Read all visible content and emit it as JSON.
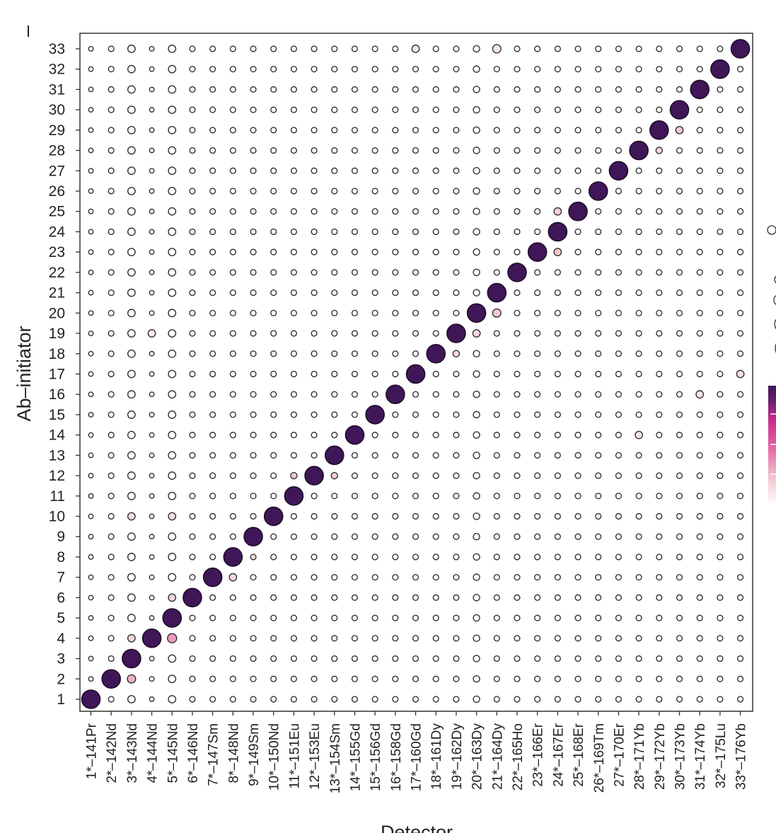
{
  "chart_data": {
    "type": "scatter",
    "chart_kind": "dot-matrix",
    "xlabel": "Detector",
    "ylabel": "Ab–initiator",
    "detectors": [
      "1*–141Pr",
      "2*–142Nd",
      "3*–143Nd",
      "4*–144Nd",
      "5*–145Nd",
      "6*–146Nd",
      "7*–147Sm",
      "8*–148Nd",
      "9*–149Sm",
      "10*–150Nd",
      "11*–151Eu",
      "12*–153Eu",
      "13*–154Sm",
      "14*–155Gd",
      "15*–156Gd",
      "16*–158Gd",
      "17*–160Gd",
      "18*–161Dy",
      "19*–162Dy",
      "20*–163Dy",
      "21*–164Dy",
      "22*–165Ho",
      "23*–166Er",
      "24*–167Er",
      "25*–168Er",
      "26*–169Tm",
      "27*–170Er",
      "28*–171Yb",
      "29*–172Yb",
      "30*–173Yb",
      "31*–174Yb",
      "32*–175Lu",
      "33*–176Yb"
    ],
    "initiators": [
      "1",
      "2",
      "3",
      "4",
      "5",
      "6",
      "7",
      "8",
      "9",
      "10",
      "11",
      "12",
      "13",
      "14",
      "15",
      "16",
      "17",
      "18",
      "19",
      "20",
      "21",
      "22",
      "23",
      "24",
      "25",
      "26",
      "27",
      "28",
      "29",
      "30",
      "31",
      "32",
      "33"
    ],
    "diagonal_value": 1.0,
    "background_value": 0.0,
    "column_background_size": [
      0.25,
      0.3,
      0.4,
      0.25,
      0.4,
      0.3,
      0.3,
      0.3,
      0.3,
      0.3,
      0.3,
      0.3,
      0.3,
      0.3,
      0.3,
      0.3,
      0.3,
      0.3,
      0.3,
      0.35,
      0.3,
      0.3,
      0.3,
      0.3,
      0.3,
      0.3,
      0.3,
      0.3,
      0.3,
      0.3,
      0.3,
      0.3,
      0.3
    ],
    "off_diagonal": [
      {
        "detector": 3,
        "initiator": 2,
        "size": 0.45,
        "value": 0.25
      },
      {
        "detector": 5,
        "initiator": 4,
        "size": 0.5,
        "value": 0.3
      },
      {
        "detector": 3,
        "initiator": 4,
        "size": 0.4,
        "value": 0.12
      },
      {
        "detector": 5,
        "initiator": 6,
        "size": 0.4,
        "value": 0.12
      },
      {
        "detector": 8,
        "initiator": 7,
        "size": 0.4,
        "value": 0.12
      },
      {
        "detector": 9,
        "initiator": 8,
        "size": 0.3,
        "value": 0.1
      },
      {
        "detector": 11,
        "initiator": 12,
        "size": 0.35,
        "value": 0.2
      },
      {
        "detector": 13,
        "initiator": 12,
        "size": 0.35,
        "value": 0.15
      },
      {
        "detector": 3,
        "initiator": 10,
        "size": 0.4,
        "value": 0.08
      },
      {
        "detector": 5,
        "initiator": 10,
        "size": 0.4,
        "value": 0.08
      },
      {
        "detector": 19,
        "initiator": 18,
        "size": 0.35,
        "value": 0.1
      },
      {
        "detector": 20,
        "initiator": 19,
        "size": 0.4,
        "value": 0.12
      },
      {
        "detector": 21,
        "initiator": 20,
        "size": 0.45,
        "value": 0.2
      },
      {
        "detector": 24,
        "initiator": 23,
        "size": 0.4,
        "value": 0.2
      },
      {
        "detector": 24,
        "initiator": 25,
        "size": 0.4,
        "value": 0.15
      },
      {
        "detector": 30,
        "initiator": 29,
        "size": 0.4,
        "value": 0.2
      },
      {
        "detector": 29,
        "initiator": 28,
        "size": 0.35,
        "value": 0.1
      },
      {
        "detector": 31,
        "initiator": 16,
        "size": 0.4,
        "value": 0.05
      },
      {
        "detector": 33,
        "initiator": 17,
        "size": 0.4,
        "value": 0.08
      },
      {
        "detector": 21,
        "initiator": 33,
        "size": 0.45,
        "value": 0.03
      },
      {
        "detector": 17,
        "initiator": 33,
        "size": 0.4,
        "value": 0.03
      },
      {
        "detector": 28,
        "initiator": 14,
        "size": 0.4,
        "value": 0.05
      },
      {
        "detector": 4,
        "initiator": 19,
        "size": 0.4,
        "value": 0.03
      }
    ],
    "colorscale": [
      "#fbeeee",
      "#f4c7cf",
      "#e06aa2",
      "#c82d8c",
      "#5a1d6a",
      "#3f1658"
    ],
    "grid": false,
    "legend": "right, partially cropped"
  }
}
